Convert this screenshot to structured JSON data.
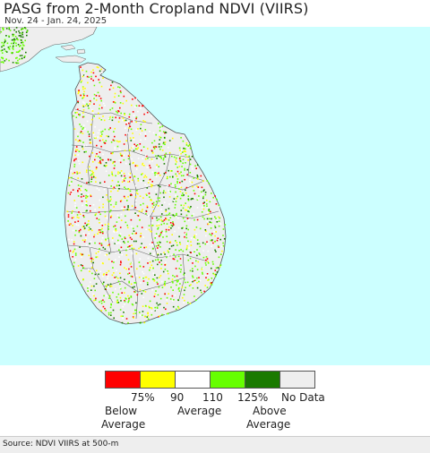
{
  "title": "PASG from 2-Month Cropland NDVI (VIIRS)",
  "subtitle": "Nov. 24 - Jan. 24, 2025",
  "legend": {
    "colors": [
      "#ff0000",
      "#ffff00",
      "#ffffff",
      "#66ff00",
      "#1a7a00",
      "#eeeeee"
    ],
    "tick_75": "75%",
    "tick_90": "90",
    "tick_110": "110",
    "tick_125": "125%",
    "no_data": "No Data",
    "below_line1": "Below",
    "below_line2": "Average",
    "average": "Average",
    "above_line1": "Above",
    "above_line2": "Average"
  },
  "colors": {
    "ocean": "#ccffff",
    "land": "#eeeeee",
    "boundary": "#666666"
  },
  "source": "Source: NDVI VIIRS at 500-m"
}
